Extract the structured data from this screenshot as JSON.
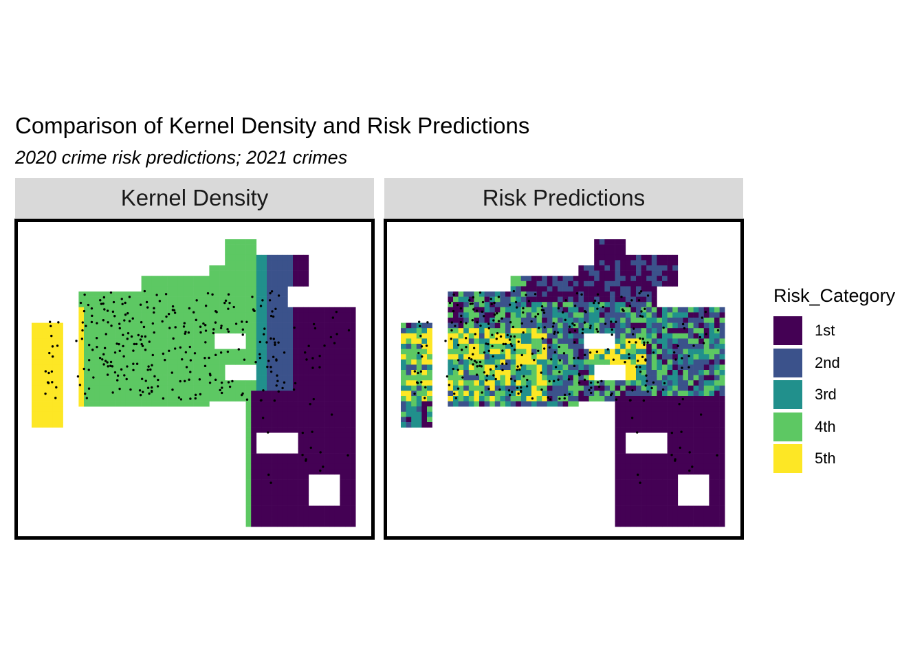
{
  "title": "Comparison of Kernel Density and Risk Predictions",
  "subtitle": "2020 crime risk predictions; 2021 crimes",
  "panels": [
    {
      "label": "Kernel Density"
    },
    {
      "label": "Risk Predictions"
    }
  ],
  "legend": {
    "title": "Risk_Category",
    "items": [
      {
        "label": "1st",
        "color": "#440154"
      },
      {
        "label": "2nd",
        "color": "#3b528b"
      },
      {
        "label": "3rd",
        "color": "#21908c"
      },
      {
        "label": "4th",
        "color": "#5dc863"
      },
      {
        "label": "5th",
        "color": "#fde725"
      }
    ]
  },
  "map": {
    "boundary": "city fishnet grid",
    "points": "2021 crime locations (black dots)"
  }
}
